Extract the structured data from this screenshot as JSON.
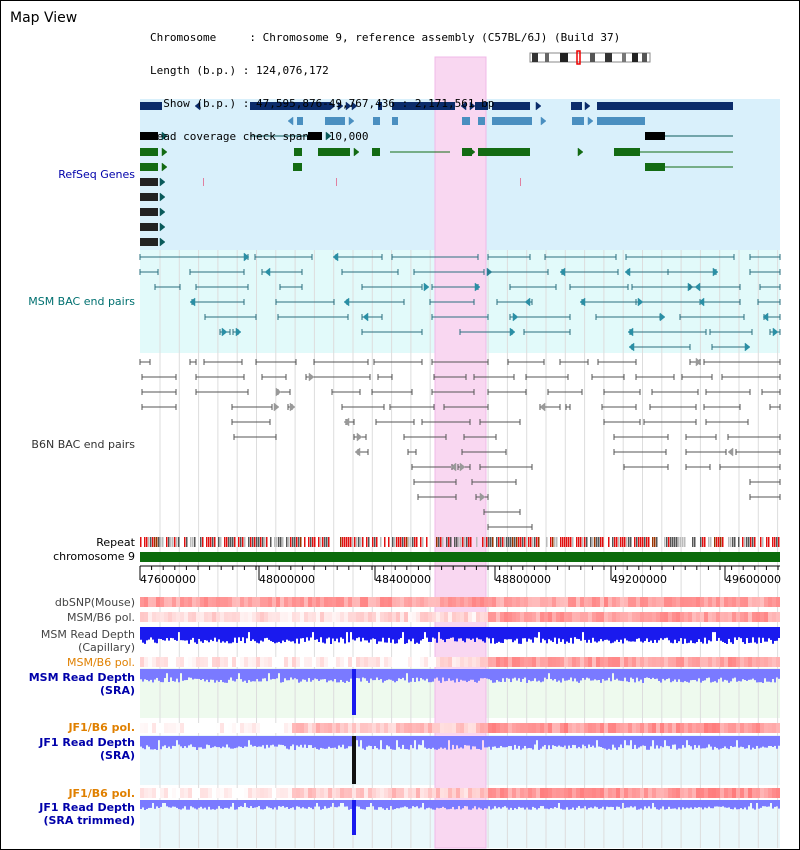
{
  "title": "Map View",
  "info": {
    "chromosome": "Chromosome     : Chromosome 9, reference assembly (C57BL/6J) (Build 37)",
    "length": "Length (b.p.) : 124,076,172",
    "show": "  Show (b.p.) : 47,595,876-49,767,436 : 2,171,561 bp",
    "span": "Read coverage check span : 10,000"
  },
  "tracks": {
    "refseq": "RefSeq Genes",
    "msm_bac": "MSM BAC end pairs",
    "b6n_bac": "B6N BAC end pairs",
    "repeat": "Repeat",
    "chromosome": "chromosome 9",
    "dbsnp": "dbSNP(Mouse)",
    "msm_pol1": "MSM/B6 pol.",
    "msm_depth_cap_1": "MSM Read Depth",
    "msm_depth_cap_2": "(Capillary)",
    "msm_pol2": "MSM/B6 pol.",
    "msm_depth_sra_1": "MSM Read Depth",
    "msm_depth_sra_2": "(SRA)",
    "jf1_pol1": "JF1/B6 pol.",
    "jf1_depth_sra_1": "JF1 Read Depth",
    "jf1_depth_sra_2": "(SRA)",
    "jf1_pol2": "JF1/B6 pol.",
    "jf1_depth_trim_1": "JF1 Read Depth",
    "jf1_depth_trim_2": "(SRA trimmed)"
  },
  "axis": {
    "ticks": [
      "47600000",
      "48000000",
      "48400000",
      "48800000",
      "49200000",
      "49600000"
    ]
  },
  "colors": {
    "highlight": "#f9d7f1",
    "refseq_bg": "#d9f0fb",
    "msm_bg": "#e2fafa",
    "gene_dark": "#0b2c6b",
    "gene_mid": "#4a8fc0",
    "gene_green": "#136b13",
    "chrom_bar": "#0b6b0b",
    "depth_capillary": "#1a1aee",
    "depth_sra": "#7a7aff",
    "label_blue": "#0000aa",
    "label_teal": "#007070",
    "label_orange": "#e08000",
    "label_gray": "#333333"
  }
}
